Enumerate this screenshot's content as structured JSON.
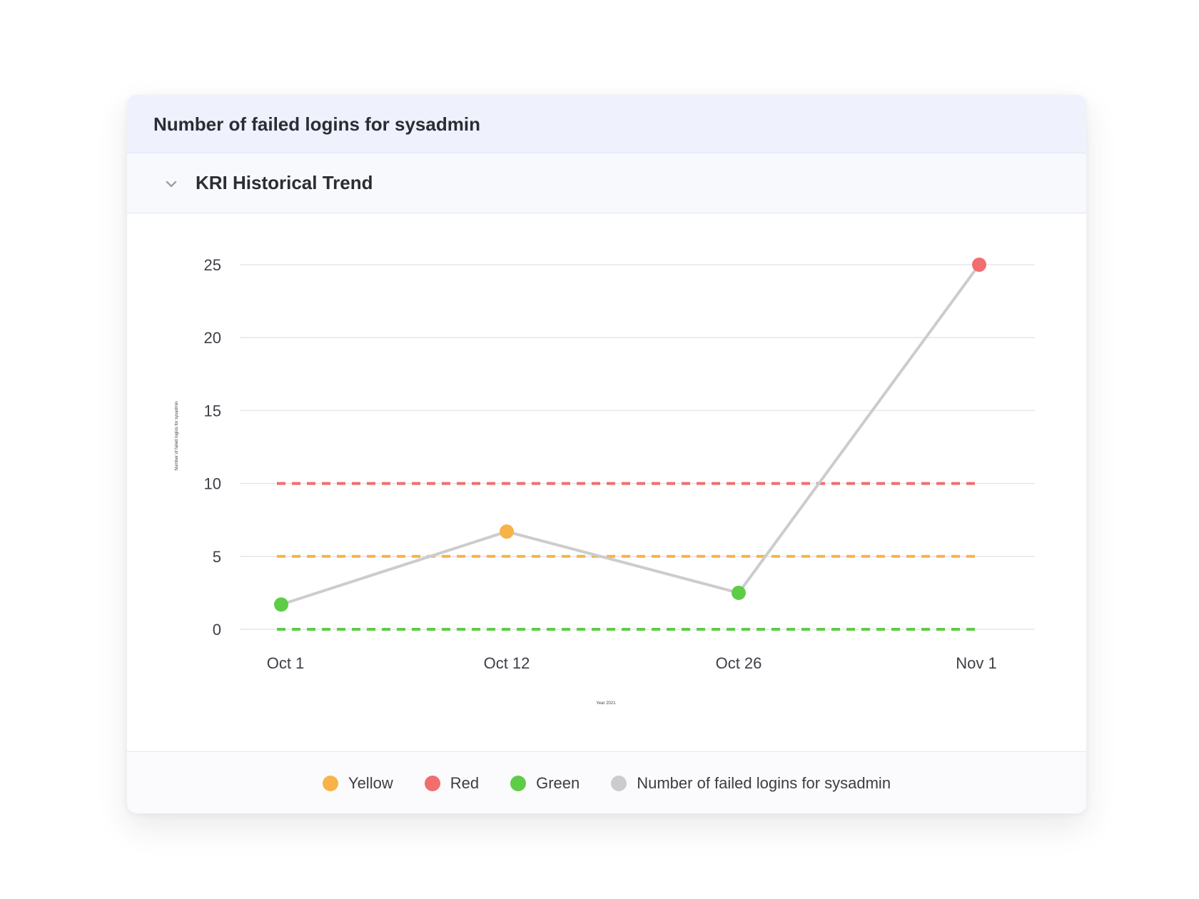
{
  "card": {
    "title": "Number of failed logins for sysadmin"
  },
  "section": {
    "title": "KRI Historical Trend",
    "toggle_icon": "chevron-down-icon"
  },
  "chart_data": {
    "type": "line",
    "categories": [
      "Oct 1",
      "Oct 12",
      "Oct 26",
      "Nov 1"
    ],
    "xlabel": "Year 2021",
    "ylabel": "Number of failed logins for sysadmin",
    "ylim": [
      0,
      25
    ],
    "yticks": [
      0,
      5,
      10,
      15,
      20,
      25
    ],
    "grid": true,
    "legend_position": "bottom",
    "series": [
      {
        "name": "Number of failed logins for sysadmin",
        "kind": "line",
        "color": "#cccccc",
        "values": [
          1.7,
          6.7,
          2.5,
          25
        ],
        "point_colors": [
          "#5fcc47",
          "#f7b347",
          "#5fcc47",
          "#f26d6d"
        ]
      },
      {
        "name": "Red",
        "kind": "threshold",
        "color": "#f26d6d",
        "value": 10
      },
      {
        "name": "Yellow",
        "kind": "threshold",
        "color": "#f7b347",
        "value": 5
      },
      {
        "name": "Green",
        "kind": "threshold",
        "color": "#5fcc47",
        "value": 0
      }
    ]
  },
  "legend": [
    {
      "label": "Yellow",
      "color": "#f7b347"
    },
    {
      "label": "Red",
      "color": "#f26d6d"
    },
    {
      "label": "Green",
      "color": "#5fcc47"
    },
    {
      "label": "Number of failed logins for sysadmin",
      "color": "#cccccc"
    }
  ]
}
